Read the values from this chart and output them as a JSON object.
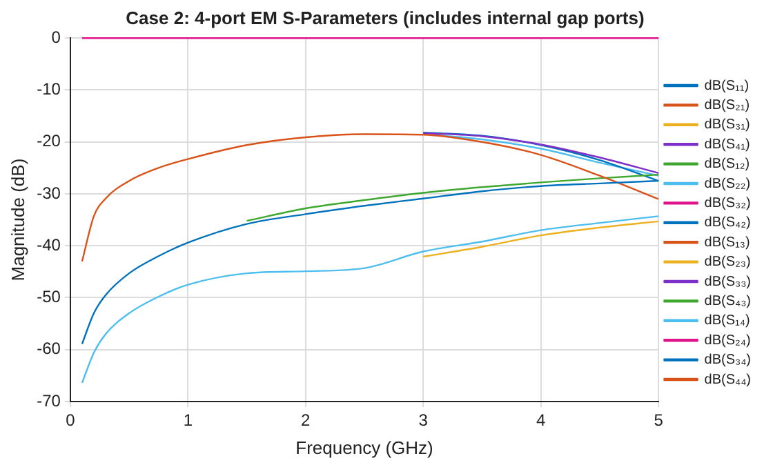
{
  "chart_data": {
    "type": "line",
    "title": "Case 2: 4-port EM S-Parameters (includes internal gap ports)",
    "xlabel": "Frequency (GHz)",
    "ylabel": "Magnitude (dB)",
    "x": [
      0.1,
      0.2,
      0.3,
      0.5,
      0.75,
      1,
      1.5,
      2,
      2.5,
      3,
      3.5,
      4,
      4.5,
      5
    ],
    "xlim": [
      0,
      5
    ],
    "xticks": [
      0,
      1,
      2,
      3,
      4,
      5
    ],
    "ylim": [
      -70,
      0
    ],
    "yticks": [
      -70,
      -60,
      -50,
      -40,
      -30,
      -20,
      -10,
      0
    ],
    "grid": true,
    "legend": "right",
    "marker": "none",
    "line_style": "solid",
    "series": [
      {
        "name": "dB(S₁₁)",
        "color": "#0072bd",
        "values": [
          -58.9,
          -53,
          -49.5,
          -45.3,
          -42,
          -39.4,
          -35.8,
          -33.9,
          -32.3,
          -30.9,
          -29.5,
          -28.5,
          -28,
          -27.5
        ]
      },
      {
        "name": "dB(S₂₁)",
        "color": "#d95319",
        "values": [
          -43,
          -34.3,
          -30.9,
          -27.5,
          -25,
          -23.3,
          -20.6,
          -19.1,
          -18.5,
          -18.6,
          -20,
          -22.5,
          -26.5,
          -31
        ]
      },
      {
        "name": "dB(S₃₁)",
        "color": "#edb120",
        "values": [
          null,
          null,
          null,
          null,
          null,
          null,
          null,
          null,
          null,
          -42.1,
          -40.2,
          -38,
          -36.5,
          -35.3
        ]
      },
      {
        "name": "dB(S₄₁)",
        "color": "#7e2fc8",
        "values": [
          null,
          null,
          null,
          null,
          null,
          null,
          null,
          null,
          null,
          -18.3,
          -18.9,
          -20.5,
          -23,
          -26
        ]
      },
      {
        "name": "dB(S₁₂)",
        "color": "#3ea82e",
        "values": [
          null,
          null,
          null,
          null,
          null,
          null,
          -35.2,
          -32.8,
          -31.2,
          -29.8,
          -28.7,
          -27.8,
          -27,
          -26.3
        ]
      },
      {
        "name": "dB(S₂₂)",
        "color": "#4dbeee",
        "values": [
          -66.4,
          -60.6,
          -57,
          -53,
          -49.8,
          -47.5,
          -45.3,
          -44.9,
          -44.3,
          -41.1,
          -39.2,
          -37,
          -35.6,
          -34.3
        ]
      },
      {
        "name": "dB(S₃₂)",
        "color": "#e0128c",
        "values": [
          0,
          0,
          0,
          0,
          0,
          0,
          0,
          0,
          0,
          0,
          0,
          0,
          0,
          0
        ]
      },
      {
        "name": "dB(S₄₂)",
        "color": "#0072bd",
        "values": [
          null,
          null,
          null,
          null,
          null,
          null,
          null,
          null,
          null,
          -18.2,
          -18.8,
          -20.6,
          -23.5,
          -27.5
        ]
      },
      {
        "name": "dB(S₁₃)",
        "color": "#d95319",
        "values": [
          null,
          null,
          null,
          null,
          null,
          null,
          null,
          null,
          null,
          null,
          null,
          null,
          null,
          null
        ]
      },
      {
        "name": "dB(S₂₃)",
        "color": "#edb120",
        "values": [
          null,
          null,
          null,
          null,
          null,
          null,
          null,
          null,
          null,
          null,
          null,
          null,
          null,
          null
        ]
      },
      {
        "name": "dB(S₃₃)",
        "color": "#7e2fc8",
        "values": [
          null,
          null,
          null,
          null,
          null,
          null,
          null,
          null,
          null,
          null,
          null,
          null,
          null,
          null
        ]
      },
      {
        "name": "dB(S₄₃)",
        "color": "#3ea82e",
        "values": [
          null,
          null,
          null,
          null,
          null,
          null,
          null,
          null,
          null,
          null,
          null,
          null,
          null,
          null
        ]
      },
      {
        "name": "dB(S₁₄)",
        "color": "#4dbeee",
        "values": [
          null,
          null,
          null,
          null,
          null,
          null,
          null,
          null,
          null,
          -18.5,
          -19.5,
          -21.3,
          -24,
          -26.5
        ]
      },
      {
        "name": "dB(S₂₄)",
        "color": "#e0128c",
        "values": [
          null,
          null,
          null,
          null,
          null,
          null,
          null,
          null,
          null,
          null,
          null,
          null,
          null,
          null
        ]
      },
      {
        "name": "dB(S₃₄)",
        "color": "#0072bd",
        "values": [
          null,
          null,
          null,
          null,
          null,
          null,
          null,
          null,
          null,
          null,
          null,
          null,
          null,
          null
        ]
      },
      {
        "name": "dB(S₄₄)",
        "color": "#d95319",
        "values": [
          null,
          null,
          null,
          null,
          null,
          null,
          null,
          null,
          null,
          null,
          null,
          null,
          null,
          null
        ]
      }
    ]
  }
}
